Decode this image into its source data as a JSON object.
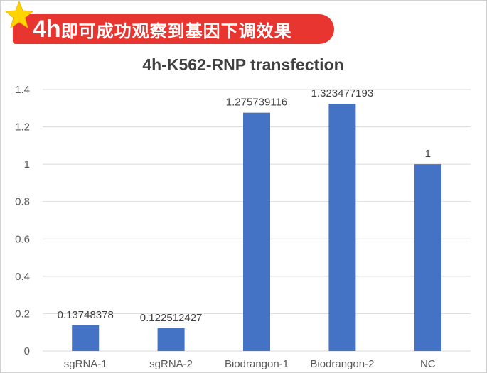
{
  "banner": {
    "prefix": "4h",
    "text": "即可成功观察到基因下调效果",
    "star_color": "#ffd400",
    "background_color": "#e8352f"
  },
  "chart_data": {
    "type": "bar",
    "title": "4h-K562-RNP transfection",
    "categories": [
      "sgRNA-1",
      "sgRNA-2",
      "Biodrangon-1",
      "Biodrangon-2",
      "NC"
    ],
    "values": [
      0.13748378,
      0.122512427,
      1.275739116,
      1.323477193,
      1
    ],
    "data_labels": [
      "0.13748378",
      "0.122512427",
      "1.275739116",
      "1.323477193",
      "1"
    ],
    "y_ticks": [
      "0",
      "0.2",
      "0.4",
      "0.6",
      "0.8",
      "1",
      "1.2",
      "1.4"
    ],
    "ylim": [
      0,
      1.4
    ],
    "y_step": 0.2,
    "grid": true,
    "legend": "none",
    "bar_color": "#4472c4",
    "grid_color": "#d9d9d9"
  }
}
